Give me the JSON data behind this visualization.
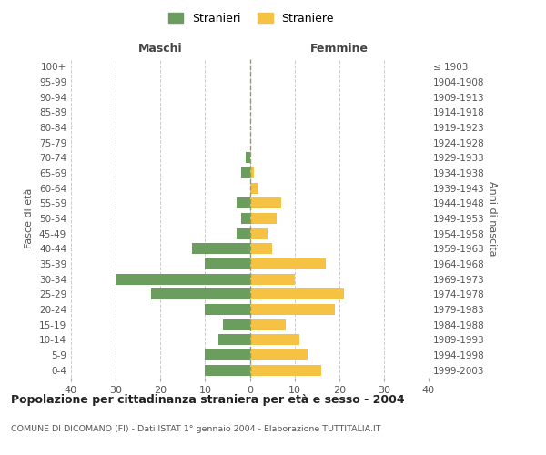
{
  "age_groups": [
    "0-4",
    "5-9",
    "10-14",
    "15-19",
    "20-24",
    "25-29",
    "30-34",
    "35-39",
    "40-44",
    "45-49",
    "50-54",
    "55-59",
    "60-64",
    "65-69",
    "70-74",
    "75-79",
    "80-84",
    "85-89",
    "90-94",
    "95-99",
    "100+"
  ],
  "birth_years": [
    "1999-2003",
    "1994-1998",
    "1989-1993",
    "1984-1988",
    "1979-1983",
    "1974-1978",
    "1969-1973",
    "1964-1968",
    "1959-1963",
    "1954-1958",
    "1949-1953",
    "1944-1948",
    "1939-1943",
    "1934-1938",
    "1929-1933",
    "1924-1928",
    "1919-1923",
    "1914-1918",
    "1909-1913",
    "1904-1908",
    "≤ 1903"
  ],
  "maschi": [
    10,
    10,
    7,
    6,
    10,
    22,
    30,
    10,
    13,
    3,
    2,
    3,
    0,
    2,
    1,
    0,
    0,
    0,
    0,
    0,
    0
  ],
  "femmine": [
    16,
    13,
    11,
    8,
    19,
    21,
    10,
    17,
    5,
    4,
    6,
    7,
    2,
    1,
    0,
    0,
    0,
    0,
    0,
    0,
    0
  ],
  "maschi_color": "#6b9e5e",
  "femmine_color": "#f5c243",
  "title": "Popolazione per cittadinanza straniera per età e sesso - 2004",
  "subtitle": "COMUNE DI DICOMANO (FI) - Dati ISTAT 1° gennaio 2004 - Elaborazione TUTTITALIA.IT",
  "ylabel_left": "Fasce di età",
  "ylabel_right": "Anni di nascita",
  "xlabel_maschi": "Maschi",
  "xlabel_femmine": "Femmine",
  "legend_maschi": "Stranieri",
  "legend_femmine": "Straniere",
  "xlim": 40,
  "background_color": "#ffffff",
  "grid_color": "#cccccc",
  "dashed_line_color": "#999966"
}
